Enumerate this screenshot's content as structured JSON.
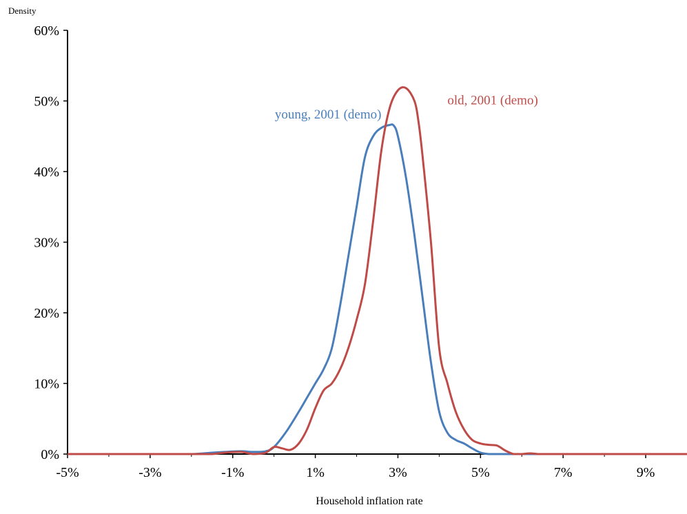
{
  "chart_data": {
    "type": "line",
    "ylabel": "Density",
    "xlabel": "Household inflation rate",
    "xlim": [
      -0.05,
      0.1
    ],
    "ylim": [
      0,
      0.6
    ],
    "x_ticks": [
      -0.05,
      -0.03,
      -0.01,
      0.01,
      0.03,
      0.05,
      0.07,
      0.09
    ],
    "x_tick_labels": [
      "-5%",
      "-3%",
      "-1%",
      "1%",
      "3%",
      "5%",
      "7%",
      "9%"
    ],
    "y_ticks": [
      0,
      0.1,
      0.2,
      0.3,
      0.4,
      0.5,
      0.6
    ],
    "y_tick_labels": [
      "0%",
      "10%",
      "20%",
      "30%",
      "40%",
      "50%",
      "60%"
    ],
    "grid": false,
    "legend": "none",
    "series": [
      {
        "name": "young, 2001 (demo)",
        "color": "#4a7ebb",
        "x": [
          -0.05,
          -0.03,
          -0.02,
          -0.015,
          -0.012,
          -0.008,
          -0.005,
          -0.002,
          0.0,
          0.003,
          0.006,
          0.008,
          0.01,
          0.012,
          0.014,
          0.016,
          0.018,
          0.02,
          0.022,
          0.024,
          0.026,
          0.028,
          0.029,
          0.03,
          0.032,
          0.034,
          0.036,
          0.038,
          0.04,
          0.042,
          0.044,
          0.046,
          0.048,
          0.05,
          0.052,
          0.054,
          0.056,
          0.06,
          0.07,
          0.1
        ],
        "y": [
          0,
          0,
          0,
          0.002,
          0.003,
          0.004,
          0.003,
          0.004,
          0.01,
          0.032,
          0.06,
          0.08,
          0.1,
          0.12,
          0.15,
          0.21,
          0.28,
          0.35,
          0.42,
          0.45,
          0.462,
          0.466,
          0.465,
          0.45,
          0.39,
          0.31,
          0.22,
          0.13,
          0.06,
          0.03,
          0.02,
          0.015,
          0.008,
          0.002,
          0.0,
          0.0,
          0.0,
          0.0,
          0.0,
          0.0
        ]
      },
      {
        "name": "old, 2001 (demo)",
        "color": "#be4b48",
        "x": [
          -0.05,
          -0.03,
          -0.02,
          -0.015,
          -0.012,
          -0.008,
          -0.005,
          -0.002,
          0.0,
          0.002,
          0.004,
          0.006,
          0.008,
          0.01,
          0.012,
          0.014,
          0.016,
          0.018,
          0.02,
          0.022,
          0.024,
          0.026,
          0.028,
          0.03,
          0.032,
          0.034,
          0.035,
          0.036,
          0.038,
          0.04,
          0.042,
          0.044,
          0.046,
          0.048,
          0.05,
          0.052,
          0.054,
          0.056,
          0.058,
          0.06,
          0.062,
          0.064,
          0.066,
          0.068,
          0.07,
          0.072,
          0.08,
          0.1
        ],
        "y": [
          0,
          0,
          0,
          0,
          0.002,
          0.003,
          0.0,
          0.002,
          0.01,
          0.008,
          0.006,
          0.015,
          0.035,
          0.065,
          0.09,
          0.1,
          0.12,
          0.15,
          0.19,
          0.24,
          0.33,
          0.43,
          0.49,
          0.515,
          0.518,
          0.5,
          0.47,
          0.42,
          0.3,
          0.15,
          0.1,
          0.06,
          0.035,
          0.02,
          0.015,
          0.013,
          0.012,
          0.005,
          0.0,
          0.0,
          0.001,
          0.0,
          0.0,
          0.0,
          0.0,
          0.0,
          0.0,
          0.0
        ]
      }
    ],
    "annotations": [
      {
        "text": "young, 2001 (demo)",
        "color": "#4a7ebb",
        "x": 0.026,
        "y": 0.475
      },
      {
        "text": "old, 2001 (demo)",
        "color": "#be4b48",
        "x": 0.042,
        "y": 0.495
      }
    ]
  }
}
